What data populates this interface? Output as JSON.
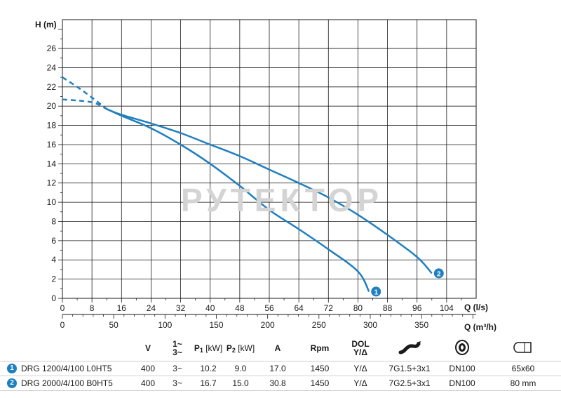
{
  "chart_data": {
    "type": "line",
    "ylabel": "H (m)",
    "xlabel": "Q (l/s)",
    "xlabel_secondary": "Q (m³/h)",
    "x_ticks": [
      0,
      8,
      16,
      24,
      32,
      40,
      48,
      56,
      64,
      72,
      80,
      88,
      96,
      104
    ],
    "x_range": [
      0,
      112
    ],
    "secondary_x_ticks": [
      0,
      50,
      100,
      150,
      200,
      250,
      300,
      350
    ],
    "secondary_x_range": [
      0,
      403.2
    ],
    "y_ticks": [
      0,
      2,
      4,
      6,
      8,
      10,
      12,
      14,
      16,
      18,
      20,
      22,
      24,
      26
    ],
    "y_range": [
      0,
      29
    ],
    "grid": true,
    "series": [
      {
        "name": "1",
        "color": "#1f7fbf",
        "dashed_points": [
          [
            0,
            20.7
          ],
          [
            8,
            20.4
          ],
          [
            12,
            19.7
          ]
        ],
        "points": [
          [
            12,
            19.7
          ],
          [
            16,
            19.0
          ],
          [
            24,
            17.7
          ],
          [
            32,
            16.0
          ],
          [
            40,
            14.0
          ],
          [
            48,
            11.7
          ],
          [
            56,
            9.2
          ],
          [
            64,
            7.2
          ],
          [
            72,
            5.1
          ],
          [
            80,
            2.8
          ],
          [
            83,
            0.7
          ]
        ]
      },
      {
        "name": "2",
        "color": "#1f7fbf",
        "dashed_points": [
          [
            0,
            23.0
          ],
          [
            4,
            22.0
          ],
          [
            8,
            20.9
          ],
          [
            12,
            19.7
          ]
        ],
        "points": [
          [
            12,
            19.7
          ],
          [
            16,
            19.1
          ],
          [
            24,
            18.2
          ],
          [
            32,
            17.2
          ],
          [
            40,
            16.0
          ],
          [
            48,
            14.8
          ],
          [
            56,
            13.4
          ],
          [
            64,
            12.0
          ],
          [
            72,
            10.5
          ],
          [
            80,
            8.7
          ],
          [
            88,
            6.6
          ],
          [
            96,
            4.3
          ],
          [
            100,
            2.6
          ]
        ]
      }
    ]
  },
  "watermark": "РУТЕКТОР",
  "table": {
    "headers": {
      "v": "V",
      "phase_top": "1~",
      "phase_bottom": "3~",
      "p1": "P",
      "p1_sub": "1",
      "p1_unit": "[kW]",
      "p2": "P",
      "p2_sub": "2",
      "p2_unit": "[kW]",
      "a": "A",
      "rpm": "Rpm",
      "dol_top": "DOL",
      "dol_bottom": "Y/Δ"
    },
    "icons": [
      "cable-icon",
      "flange-icon",
      "dimension-icon"
    ],
    "rows": [
      {
        "badge": "1",
        "model": "DRG 1200/4/100 L0HT5",
        "v": "400",
        "phase": "3~",
        "p1": "10.2",
        "p2": "9.0",
        "a": "17.0",
        "rpm": "1450",
        "dol": "Y/Δ",
        "cable": "7G1.5+3x1",
        "flange": "DN100",
        "size": "65x60"
      },
      {
        "badge": "2",
        "model": "DRG 2000/4/100 B0HT5",
        "v": "400",
        "phase": "3~",
        "p1": "16.7",
        "p2": "15.0",
        "a": "30.8",
        "rpm": "1450",
        "dol": "Y/Δ",
        "cable": "7G2.5+3x1",
        "flange": "DN100",
        "size": "80 mm"
      }
    ]
  }
}
